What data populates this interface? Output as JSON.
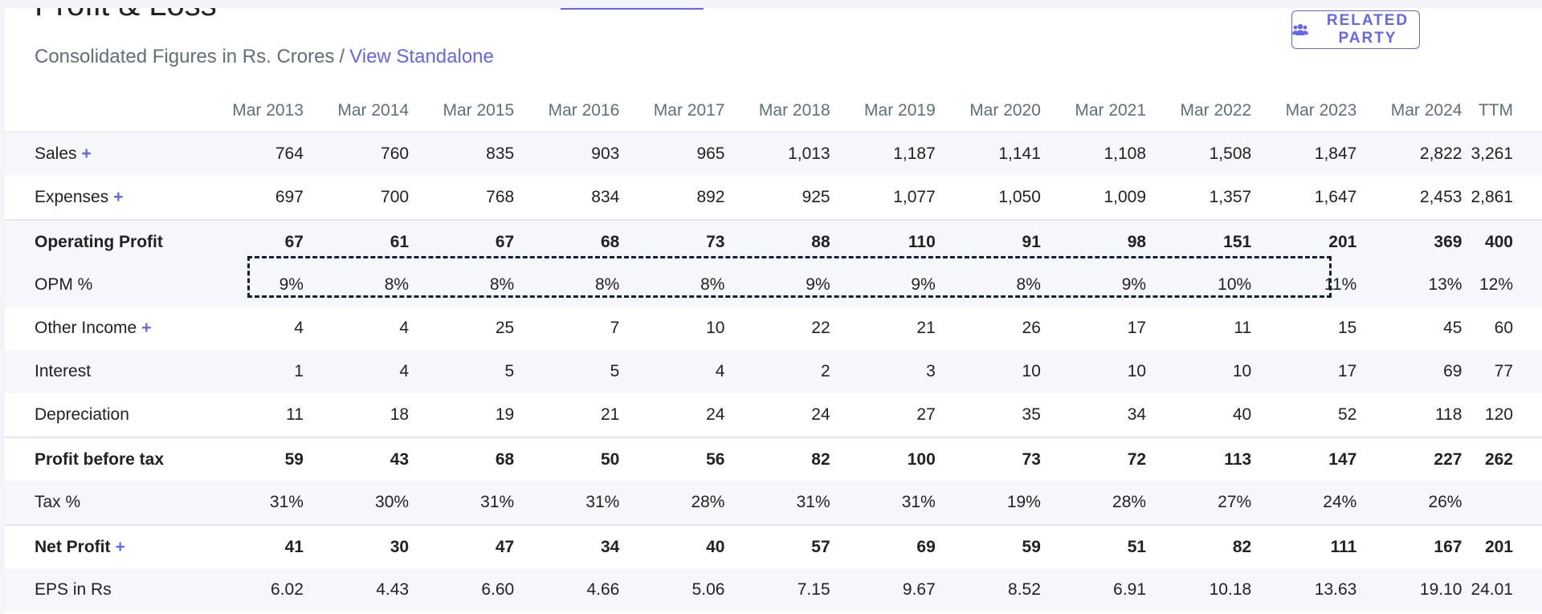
{
  "section": {
    "title": "Profit & Loss",
    "subtitle_text": "Consolidated Figures in Rs. Crores",
    "subtitle_separator": "/",
    "view_standalone": "View Standalone",
    "related_party_label": "RELATED PARTY",
    "related_party_icon": "users-icon"
  },
  "colors": {
    "accent": "#6366f1",
    "highlight_border": "#0f1e3d",
    "stripe": "#f6f7fb"
  },
  "table": {
    "columns": [
      "Mar 2013",
      "Mar 2014",
      "Mar 2015",
      "Mar 2016",
      "Mar 2017",
      "Mar 2018",
      "Mar 2019",
      "Mar 2020",
      "Mar 2021",
      "Mar 2022",
      "Mar 2023",
      "Mar 2024",
      "TTM"
    ],
    "rows": [
      {
        "label": "Sales",
        "expandable": "+",
        "values": [
          "764",
          "760",
          "835",
          "903",
          "965",
          "1,013",
          "1,187",
          "1,141",
          "1,108",
          "1,508",
          "1,847",
          "2,822",
          "3,261"
        ]
      },
      {
        "label": "Expenses",
        "expandable": "+",
        "values": [
          "697",
          "700",
          "768",
          "834",
          "892",
          "925",
          "1,077",
          "1,050",
          "1,009",
          "1,357",
          "1,647",
          "2,453",
          "2,861"
        ]
      },
      {
        "label": "Operating Profit",
        "values": [
          "67",
          "61",
          "67",
          "68",
          "73",
          "88",
          "110",
          "91",
          "98",
          "151",
          "201",
          "369",
          "400"
        ]
      },
      {
        "label": "OPM %",
        "values": [
          "9%",
          "8%",
          "8%",
          "8%",
          "8%",
          "9%",
          "9%",
          "8%",
          "9%",
          "10%",
          "11%",
          "13%",
          "12%"
        ]
      },
      {
        "label": "Other Income",
        "expandable": "+",
        "values": [
          "4",
          "4",
          "25",
          "7",
          "10",
          "22",
          "21",
          "26",
          "17",
          "11",
          "15",
          "45",
          "60"
        ]
      },
      {
        "label": "Interest",
        "values": [
          "1",
          "4",
          "5",
          "5",
          "4",
          "2",
          "3",
          "10",
          "10",
          "10",
          "17",
          "69",
          "77"
        ]
      },
      {
        "label": "Depreciation",
        "values": [
          "11",
          "18",
          "19",
          "21",
          "24",
          "24",
          "27",
          "35",
          "34",
          "40",
          "52",
          "118",
          "120"
        ]
      },
      {
        "label": "Profit before tax",
        "values": [
          "59",
          "43",
          "68",
          "50",
          "56",
          "82",
          "100",
          "73",
          "72",
          "113",
          "147",
          "227",
          "262"
        ]
      },
      {
        "label": "Tax %",
        "values": [
          "31%",
          "30%",
          "31%",
          "31%",
          "28%",
          "31%",
          "31%",
          "19%",
          "28%",
          "27%",
          "24%",
          "26%",
          ""
        ]
      },
      {
        "label": "Net Profit",
        "expandable": "+",
        "values": [
          "41",
          "30",
          "47",
          "34",
          "40",
          "57",
          "69",
          "59",
          "51",
          "82",
          "111",
          "167",
          "201"
        ]
      },
      {
        "label": "EPS in Rs",
        "values": [
          "6.02",
          "4.43",
          "6.60",
          "4.66",
          "5.06",
          "7.15",
          "9.67",
          "8.52",
          "6.91",
          "10.18",
          "13.63",
          "19.10",
          "24.01"
        ]
      }
    ]
  }
}
